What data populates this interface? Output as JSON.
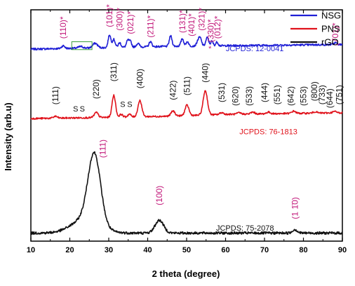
{
  "chart_data": {
    "type": "line",
    "xlabel": "2 theta (degree)",
    "ylabel": "Intensity (arb.u)",
    "xlim": [
      10,
      90
    ],
    "ylim": [
      0,
      100
    ],
    "x_ticks": [
      "10",
      "20",
      "30",
      "40",
      "50",
      "60",
      "70",
      "80",
      "90"
    ],
    "grid": false,
    "legend": {
      "position": "top-right",
      "entries": [
        {
          "name": "NSG",
          "color": "#1f1fd6"
        },
        {
          "name": "PNS",
          "color": "#e0121b"
        },
        {
          "name": "rGO",
          "color": "#111111"
        }
      ]
    },
    "colors": {
      "miller": "#c2187a",
      "axis": "#000000"
    },
    "series": [
      {
        "name": "NSG",
        "color": "#1f1fd6",
        "baseline": 83,
        "noise": 0.4,
        "ramp": [
          [
            10,
            0
          ],
          [
            28,
            0.6
          ],
          [
            48,
            1.3
          ],
          [
            60,
            1.5
          ],
          [
            90,
            2
          ]
        ],
        "peaks": [
          [
            18.3,
            1.2,
            0.4
          ],
          [
            22.8,
            0.7,
            0.6
          ],
          [
            26.5,
            2.0,
            0.6
          ],
          [
            30.2,
            5.5,
            0.35
          ],
          [
            31.3,
            3.5,
            0.35
          ],
          [
            32.8,
            2.0,
            0.35
          ],
          [
            34.9,
            3.0,
            0.35
          ],
          [
            35.6,
            2.2,
            0.3
          ],
          [
            37.5,
            1.5,
            0.4
          ],
          [
            40.7,
            2.2,
            0.35
          ],
          [
            45.9,
            4.5,
            0.35
          ],
          [
            48.9,
            3.2,
            0.35
          ],
          [
            50.2,
            2.0,
            0.3
          ],
          [
            52.9,
            2.0,
            0.35
          ],
          [
            53.5,
            3.2,
            0.35
          ],
          [
            55.3,
            3.6,
            0.35
          ],
          [
            56.5,
            2.0,
            0.3
          ],
          [
            57.8,
            1.6,
            0.3
          ],
          [
            88.2,
            0.8,
            0.4
          ]
        ],
        "labels": [
          {
            "text": "(110)*",
            "x": 18.3,
            "y": 87.5
          },
          {
            "text": "(101)*",
            "x": 30.2,
            "y": 92.5
          },
          {
            "text": "(300)*",
            "x": 32.8,
            "y": 91
          },
          {
            "text": "(021)*",
            "x": 35.6,
            "y": 89.5
          },
          {
            "text": "(211)*",
            "x": 40.7,
            "y": 88
          },
          {
            "text": "(131)*",
            "x": 48.9,
            "y": 90
          },
          {
            "text": "(401)*",
            "x": 51.3,
            "y": 88.5
          },
          {
            "text": "(321)*",
            "x": 53.9,
            "y": 91
          },
          {
            "text": "(330)*",
            "x": 56.2,
            "y": 86
          },
          {
            "text": "(012)*",
            "x": 57.9,
            "y": 87.5
          },
          {
            "text": "(701)*",
            "x": 88.2,
            "y": 84.5
          }
        ],
        "jcpds": {
          "text": "JCPDS: 12-0041",
          "x": 67.5,
          "y": 83.3,
          "prefix": "*"
        }
      },
      {
        "name": "PNS",
        "color": "#e0121b",
        "baseline": 53,
        "noise": 0.35,
        "ramp": [
          [
            10,
            0
          ],
          [
            26,
            0.4
          ],
          [
            45,
            1.0
          ],
          [
            60,
            1.8
          ],
          [
            90,
            2.5
          ]
        ],
        "peaks": [
          [
            16.3,
            0.8,
            0.5
          ],
          [
            26.8,
            2.2,
            0.5
          ],
          [
            31.3,
            9.5,
            0.45
          ],
          [
            33.2,
            1.2,
            0.4
          ],
          [
            35.3,
            1.2,
            0.4
          ],
          [
            38.0,
            7.0,
            0.5
          ],
          [
            46.5,
            2.2,
            0.5
          ],
          [
            50.1,
            4.5,
            0.5
          ],
          [
            54.8,
            10.5,
            0.55
          ],
          [
            59.0,
            0.8,
            0.5
          ],
          [
            63.5,
            0.6,
            0.5
          ],
          [
            67.0,
            0.8,
            0.5
          ],
          [
            71.0,
            0.7,
            0.5
          ],
          [
            77.5,
            1.0,
            0.5
          ],
          [
            83.0,
            0.6,
            0.5
          ],
          [
            88.0,
            0.6,
            0.5
          ]
        ],
        "labels": [
          {
            "text": "(111)",
            "x": 16.3,
            "y": 59
          },
          {
            "text": "(220)",
            "x": 26.8,
            "y": 61.5
          },
          {
            "text": "(311)",
            "x": 31.3,
            "y": 69
          },
          {
            "text": "(400)",
            "x": 38.0,
            "y": 66
          },
          {
            "text": "(422)",
            "x": 46.5,
            "y": 61
          },
          {
            "text": "(511)",
            "x": 50.1,
            "y": 63
          },
          {
            "text": "(440)",
            "x": 54.8,
            "y": 68.5
          },
          {
            "text": "(531)",
            "x": 59.0,
            "y": 60
          },
          {
            "text": "(620)",
            "x": 62.5,
            "y": 58.5
          },
          {
            "text": "(533)",
            "x": 66.0,
            "y": 58.5
          },
          {
            "text": "(444)",
            "x": 70.0,
            "y": 60
          },
          {
            "text": "(551)",
            "x": 73.2,
            "y": 59
          },
          {
            "text": "(642)",
            "x": 76.8,
            "y": 58.5
          },
          {
            "text": "(553)",
            "x": 80.0,
            "y": 58.5
          },
          {
            "text": "(800)",
            "x": 82.8,
            "y": 60.5
          },
          {
            "text": "(733)",
            "x": 84.8,
            "y": 59
          },
          {
            "text": "(644)",
            "x": 86.8,
            "y": 57.5
          },
          {
            "text": "(751)",
            "x": 89.2,
            "y": 59
          }
        ],
        "markers": [
          {
            "text": "S",
            "x": 21.5,
            "y": 56
          },
          {
            "text": "S",
            "x": 23.2,
            "y": 56
          },
          {
            "text": "S",
            "x": 33.6,
            "y": 58
          },
          {
            "text": "S",
            "x": 35.4,
            "y": 58
          }
        ],
        "jcpds": {
          "text": "JCPDS: 76-1813",
          "x": 71,
          "y": 47.5
        }
      },
      {
        "name": "rGO",
        "color": "#111111",
        "baseline": 3.5,
        "noise": 0.55,
        "ramp": [
          [
            10,
            0
          ],
          [
            90,
            0
          ]
        ],
        "peaks": [
          [
            26.3,
            30,
            1.6
          ],
          [
            24.0,
            6,
            3.5
          ],
          [
            43.0,
            5.5,
            1.1
          ],
          [
            77.8,
            1.5,
            0.6
          ]
        ],
        "labels": [
          {
            "text": "(111)",
            "x": 28.5,
            "y": 36
          },
          {
            "text": "(100)",
            "x": 43.0,
            "y": 15.5
          },
          {
            "text": "(1 1̄0)",
            "x": 77.8,
            "y": 9.5
          }
        ],
        "jcpds": {
          "text": "JCPDS: 75-2078",
          "x": 65,
          "y": 5.8
        }
      }
    ],
    "annotation_box": {
      "x0": 20.5,
      "x1": 25.7,
      "y0": 82.8,
      "y1": 86.2,
      "color": "#3a9e3a"
    }
  }
}
